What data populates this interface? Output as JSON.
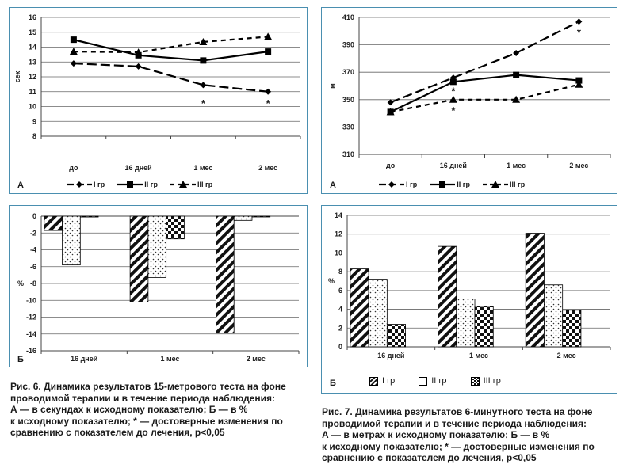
{
  "fig6": {
    "caption_lines": [
      "Рис. 6. Динамика результатов 15-метрового теста на фоне",
      "проводимой терапии и в течение периода наблюдения:",
      "А — в секундах к исходному показателю; Б — в %",
      "к исходному показателю; * — достоверные изменения по",
      "сравнению с показателем до лечения, p<0,05"
    ]
  },
  "fig7": {
    "caption_lines": [
      "Рис. 7. Динамика результатов 6-минутного теста на фоне",
      "проводимой терапии и в течение периода наблюдения:",
      "А — в метрах к исходному показателю; Б — в %",
      "к исходному показателю; * — достоверные изменения по",
      "сравнению с показателем до лечения, p<0,05"
    ]
  },
  "legend": {
    "g1": "I гр",
    "g2": "II гр",
    "g3": "III гр"
  },
  "chart_data": [
    {
      "id": "fig6A",
      "panel_label": "А",
      "type": "line",
      "ylabel": "сек",
      "ylim": [
        8,
        16
      ],
      "yticks": [
        8,
        9,
        10,
        11,
        12,
        13,
        14,
        15,
        16
      ],
      "categories": [
        "до",
        "16 дней",
        "1 мес",
        "2 мес"
      ],
      "series": [
        {
          "name": "I гр",
          "values": [
            12.9,
            12.7,
            11.45,
            11.0
          ],
          "style": "long-dash",
          "marker": "diamond"
        },
        {
          "name": "II гр",
          "values": [
            14.5,
            13.45,
            13.1,
            13.7
          ],
          "style": "solid",
          "marker": "square"
        },
        {
          "name": "III гр",
          "values": [
            13.7,
            13.65,
            14.35,
            14.7
          ],
          "style": "dash",
          "marker": "triangle"
        }
      ],
      "annotations": [
        {
          "text": "*",
          "category": "1 мес",
          "y": 10.3
        },
        {
          "text": "*",
          "category": "2 мес",
          "y": 10.3
        }
      ]
    },
    {
      "id": "fig7A",
      "panel_label": "А",
      "type": "line",
      "ylabel": "м",
      "ylim": [
        310,
        410
      ],
      "yticks": [
        310,
        330,
        350,
        370,
        390,
        410
      ],
      "categories": [
        "до",
        "16 дней",
        "1 мес",
        "2 мес"
      ],
      "series": [
        {
          "name": "I гр",
          "values": [
            348,
            366,
            384,
            407
          ],
          "style": "long-dash",
          "marker": "diamond"
        },
        {
          "name": "II гр",
          "values": [
            341,
            363,
            368,
            364
          ],
          "style": "solid",
          "marker": "square"
        },
        {
          "name": "III гр",
          "values": [
            341,
            350,
            350,
            361
          ],
          "style": "dash",
          "marker": "triangle"
        }
      ],
      "annotations": [
        {
          "text": "*",
          "category": "16 дней",
          "y": 357
        },
        {
          "text": "*",
          "category": "16 дней",
          "y": 343
        },
        {
          "text": "*",
          "category": "2 мес",
          "y": 400
        }
      ]
    },
    {
      "id": "fig6B",
      "panel_label": "Б",
      "type": "bar",
      "ylabel": "%",
      "ylim": [
        -16,
        0
      ],
      "yticks": [
        0,
        -2,
        -4,
        -6,
        -8,
        -10,
        -12,
        -14,
        -16
      ],
      "categories": [
        "16 дней",
        "1 мес",
        "2 мес"
      ],
      "series": [
        {
          "name": "I гр",
          "values": [
            -1.7,
            -10.2,
            -13.9
          ],
          "pattern": "diagonal"
        },
        {
          "name": "II гр",
          "values": [
            -5.8,
            -7.3,
            -0.5
          ],
          "pattern": "dots"
        },
        {
          "name": "III гр",
          "values": [
            -0.1,
            -2.7,
            0
          ],
          "pattern": "checker"
        }
      ]
    },
    {
      "id": "fig7B",
      "panel_label": "Б",
      "type": "bar",
      "ylabel": "%",
      "ylim": [
        0,
        14
      ],
      "yticks": [
        0,
        2,
        4,
        6,
        8,
        10,
        12,
        14
      ],
      "categories": [
        "16 дней",
        "1 мес",
        "2 мес"
      ],
      "series": [
        {
          "name": "I гр",
          "values": [
            8.3,
            10.7,
            12.1
          ],
          "pattern": "diagonal"
        },
        {
          "name": "II гр",
          "values": [
            7.2,
            5.1,
            6.6
          ],
          "pattern": "dots"
        },
        {
          "name": "III гр",
          "values": [
            2.4,
            4.3,
            3.9
          ],
          "pattern": "checker"
        }
      ]
    }
  ]
}
